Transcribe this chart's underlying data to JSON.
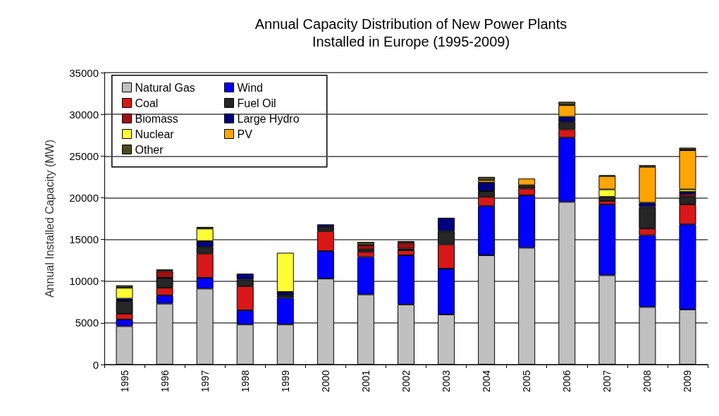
{
  "chart_data": {
    "type": "bar",
    "stacked": true,
    "title": "Annual Capacity Distribution of New Power Plants\nInstalled in Europe (1995-2009)",
    "ylabel": "Annual Installed Capacity (MW)",
    "categories": [
      "1995",
      "1996",
      "1997",
      "1998",
      "1999",
      "2000",
      "2001",
      "2002",
      "2003",
      "2004",
      "2005",
      "2006",
      "2007",
      "2008",
      "2009"
    ],
    "series": [
      {
        "name": "Natural Gas",
        "color": "#c0c0c0",
        "values": [
          4600,
          7300,
          9100,
          4800,
          4800,
          10300,
          8400,
          7200,
          6000,
          13100,
          14000,
          19500,
          10700,
          6900,
          6600
        ]
      },
      {
        "name": "Wind",
        "color": "#0000ff",
        "values": [
          800,
          1000,
          1300,
          1700,
          3200,
          3300,
          4500,
          5900,
          5500,
          5900,
          6300,
          7700,
          8500,
          8600,
          10200
        ]
      },
      {
        "name": "Coal",
        "color": "#d81818",
        "values": [
          700,
          900,
          2900,
          2900,
          null,
          2400,
          600,
          600,
          2900,
          1100,
          800,
          1000,
          400,
          800,
          2400
        ]
      },
      {
        "name": "Fuel Oil",
        "color": "#262626",
        "values": [
          1500,
          1200,
          800,
          800,
          300,
          500,
          300,
          200,
          1600,
          700,
          400,
          900,
          500,
          2600,
          900
        ]
      },
      {
        "name": "Biomass",
        "color": "#a01010",
        "values": [
          null,
          800,
          null,
          null,
          null,
          null,
          500,
          700,
          null,
          null,
          null,
          null,
          null,
          null,
          300
        ]
      },
      {
        "name": "Large Hydro",
        "color": "#000080",
        "values": [
          300,
          null,
          700,
          700,
          400,
          300,
          null,
          null,
          1600,
          1000,
          null,
          600,
          null,
          500,
          300
        ]
      },
      {
        "name": "Nuclear",
        "color": "#ffff33",
        "values": [
          1300,
          null,
          1500,
          null,
          4700,
          null,
          null,
          null,
          null,
          null,
          null,
          null,
          900,
          null,
          300
        ]
      },
      {
        "name": "PV",
        "color": "#ffa500",
        "values": [
          null,
          null,
          null,
          null,
          null,
          null,
          null,
          null,
          null,
          300,
          800,
          1400,
          1600,
          4300,
          4700
        ]
      },
      {
        "name": "Other",
        "color": "#4a4a20",
        "values": [
          300,
          200,
          200,
          null,
          null,
          null,
          400,
          200,
          null,
          400,
          null,
          400,
          100,
          200,
          300
        ]
      }
    ],
    "ylim": [
      0,
      35000
    ],
    "yticks": [
      0,
      5000,
      10000,
      15000,
      20000,
      25000,
      30000,
      35000
    ],
    "grid": "y",
    "legend": "top left"
  }
}
